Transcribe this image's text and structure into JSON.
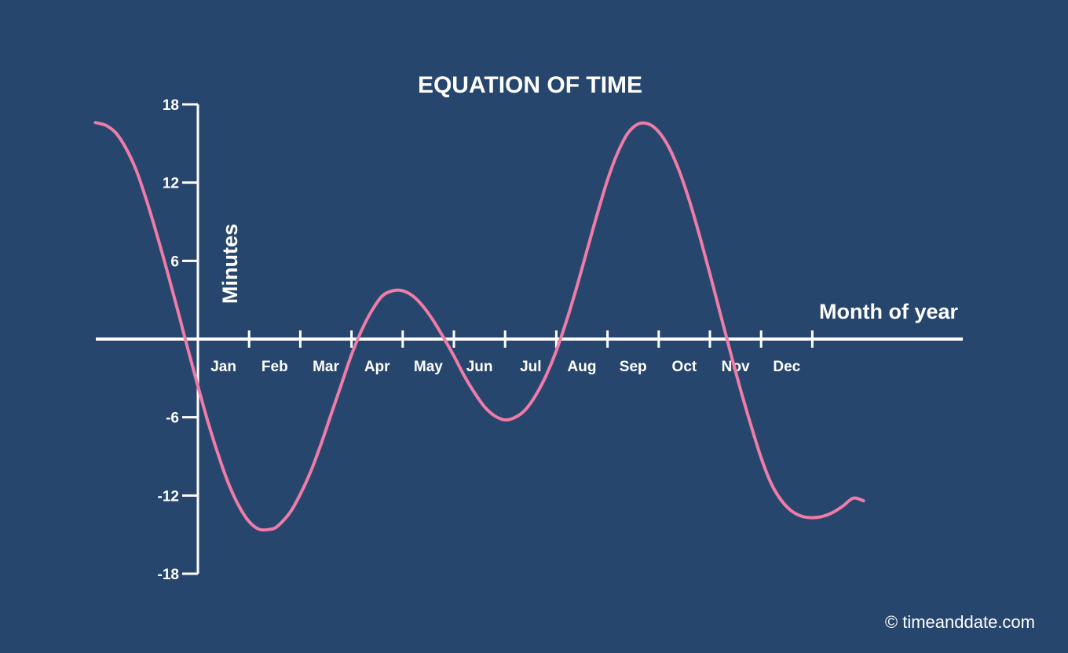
{
  "chart_data": {
    "type": "line",
    "title": "EQUATION OF TIME",
    "xlabel": "Month of year",
    "ylabel": "Minutes",
    "ylim": [
      -18,
      18
    ],
    "yticks": [
      18,
      12,
      6,
      -6,
      -12,
      -18
    ],
    "ytick_labels": [
      "18",
      "12",
      "6",
      "-6",
      "-12",
      "-18"
    ],
    "categories": [
      "Jan",
      "Feb",
      "Mar",
      "Apr",
      "May",
      "Jun",
      "Jul",
      "Aug",
      "Sep",
      "Oct",
      "Nov",
      "Dec"
    ],
    "series": [
      {
        "x": [
          -2,
          -1.8,
          -1.6,
          -1.4,
          -1.2,
          -1,
          -0.8,
          -0.6,
          -0.4,
          -0.3,
          -0.2,
          0,
          0.2,
          0.4,
          0.6,
          0.8,
          1,
          1.2,
          1.4,
          1.5,
          1.6,
          1.8,
          2,
          2.2,
          2.4,
          2.6,
          2.8,
          3,
          3.2,
          3.4,
          3.6,
          3.8,
          4,
          4.2,
          4.4,
          4.6,
          4.8,
          5,
          5.2,
          5.4,
          5.6,
          5.8,
          6,
          6.2,
          6.4,
          6.6,
          6.8,
          7,
          7.2,
          7.4,
          7.6,
          7.8,
          8,
          8.2,
          8.4,
          8.6,
          8.8,
          9,
          9.2,
          9.4,
          9.6,
          9.8,
          10,
          10.2,
          10.4,
          10.6,
          10.8,
          11,
          11.2,
          11.4,
          11.6,
          11.8,
          12,
          12.2,
          12.4,
          12.6,
          12.8,
          13
        ],
        "y": [
          16.6,
          16.4,
          15.8,
          14.6,
          12.9,
          10.6,
          8.0,
          5.2,
          2.3,
          0.8,
          -0.7,
          -3.6,
          -6.4,
          -8.9,
          -11.1,
          -12.8,
          -14.0,
          -14.6,
          -14.6,
          -14.5,
          -14.2,
          -13.3,
          -11.9,
          -10.2,
          -8.1,
          -5.8,
          -3.5,
          -1.2,
          0.7,
          2.2,
          3.3,
          3.7,
          3.7,
          3.3,
          2.5,
          1.4,
          0.1,
          -1.3,
          -2.8,
          -4.1,
          -5.2,
          -5.9,
          -6.2,
          -6.0,
          -5.4,
          -4.3,
          -2.8,
          -0.9,
          1.4,
          4.0,
          6.8,
          9.6,
          12.2,
          14.3,
          15.8,
          16.5,
          16.5,
          15.9,
          14.7,
          12.9,
          10.6,
          7.9,
          5.0,
          2.0,
          -1.0,
          -3.9,
          -6.6,
          -9.1,
          -11.1,
          -12.4,
          -13.2,
          -13.6,
          -13.7,
          -13.6,
          -13.3,
          -12.8,
          -12.2,
          -12.4
        ]
      }
    ],
    "colors": {
      "background": "#27466d",
      "line": "#ef7ca8",
      "axis": "#ffffff"
    },
    "grid": false,
    "credit": "© timeanddate.com"
  }
}
